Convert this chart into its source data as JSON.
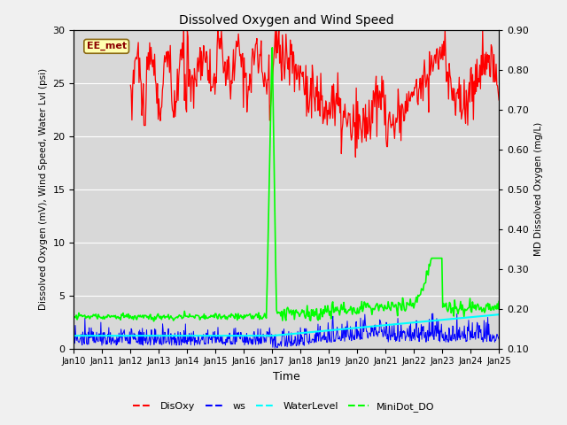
{
  "title": "Dissolved Oxygen and Wind Speed",
  "ylabel_left": "Dissolved Oxygen (mV), Wind Speed, Water Lvl (psi)",
  "ylabel_right": "MD Dissolved Oxygen (mg/L)",
  "xlabel": "Time",
  "ylim_left": [
    0,
    30
  ],
  "ylim_right": [
    0.1,
    0.9
  ],
  "xlim": [
    0,
    15
  ],
  "annotation_text": "EE_met",
  "fig_bg_color": "#f0f0f0",
  "ax_bg_color": "#d8d8d8",
  "legend_labels": [
    "DisOxy",
    "ws",
    "WaterLevel",
    "MiniDot_DO"
  ],
  "legend_colors": [
    "red",
    "blue",
    "cyan",
    "green"
  ],
  "xtick_labels": [
    "Jan 10",
    "Jan 11",
    "Jan 12",
    "Jan 13",
    "Jan 14",
    "Jan 15",
    "Jan 16",
    "Jan 17",
    "Jan 18",
    "Jan 19",
    "Jan 20",
    "Jan 21",
    "Jan 22",
    "Jan 23",
    "Jan 24",
    "Jan 25"
  ],
  "yticks_left": [
    0,
    5,
    10,
    15,
    20,
    25,
    30
  ],
  "yticks_right": [
    0.1,
    0.2,
    0.3,
    0.4,
    0.5,
    0.6,
    0.7,
    0.8,
    0.9
  ]
}
